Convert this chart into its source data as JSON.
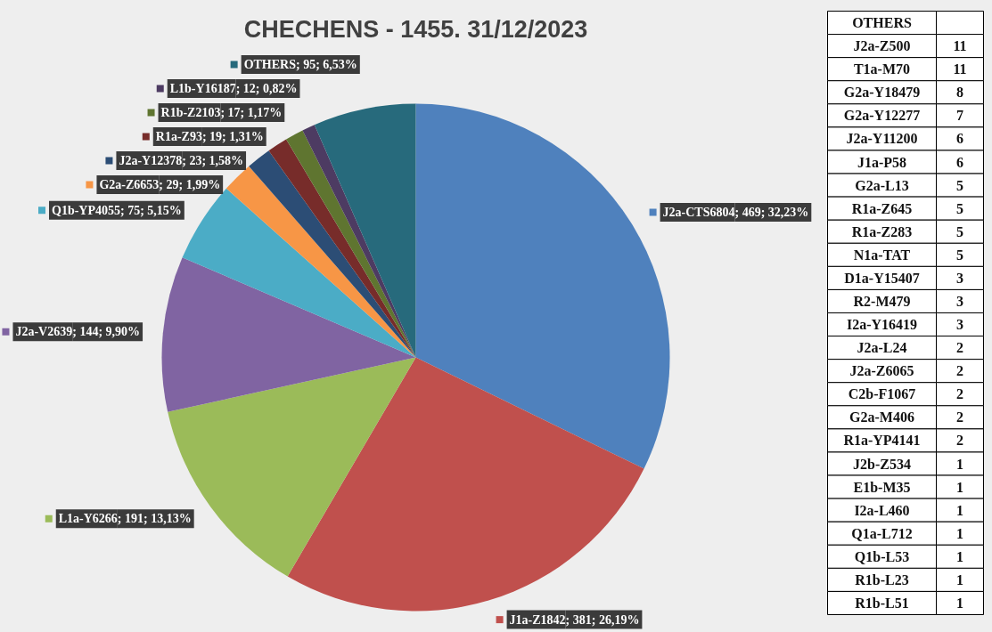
{
  "chart_data": [
    {
      "type": "pie",
      "title": "CHECHENS - 1455. 31/12/2023",
      "categories": [
        "J2a-CTS6804",
        "J1a-Z1842",
        "L1a-Y6266",
        "J2a-V2639",
        "Q1b-YP4055",
        "G2a-Z6653",
        "J2a-Y12378",
        "R1a-Z93",
        "R1b-Z2103",
        "L1b-Y16187",
        "OTHERS"
      ],
      "values": [
        469,
        381,
        191,
        144,
        75,
        29,
        23,
        19,
        17,
        12,
        95
      ],
      "colors": [
        "#4f81bd",
        "#c0504d",
        "#9bbb59",
        "#8064a2",
        "#4bacc6",
        "#f79646",
        "#2c4d75",
        "#772c2a",
        "#5f7530",
        "#4d3b62",
        "#276a7c"
      ],
      "value_labels": [
        "; 469; 32,23%",
        "; 381; 26,19%",
        "; 191; 13,13%",
        "; 144; 9,90%",
        "; 75; 5,15%",
        "; 29; 1,99%",
        "; 23; 1,58%",
        "; 19; 1,31%",
        "; 17; 1,17%",
        "; 12; 0,82%",
        "; 95; 6,53%"
      ],
      "legend": "left"
    },
    {
      "type": "other",
      "title": "OTHERS",
      "categories": [
        "J2a-Z500",
        "T1a-M70",
        "G2a-Y18479",
        "G2a-Y12277",
        "J2a-Y11200",
        "J1a-P58",
        "G2a-L13",
        "R1a-Z645",
        "R1a-Z283",
        "N1a-TAT",
        "D1a-Y15407",
        "R2-M479",
        "I2a-Y16419",
        "J2a-L24",
        "J2a-Z6065",
        "C2b-F1067",
        "G2a-M406",
        "R1a-YP4141",
        "J2b-Z534",
        "E1b-M35",
        "I2a-L460",
        "Q1a-L712",
        "Q1b-L53",
        "R1b-L23",
        "R1b-L51"
      ],
      "values": [
        11,
        11,
        8,
        7,
        6,
        6,
        5,
        5,
        5,
        5,
        3,
        3,
        3,
        2,
        2,
        2,
        2,
        2,
        1,
        1,
        1,
        1,
        1,
        1,
        1
      ],
      "data_labels": true
    }
  ]
}
